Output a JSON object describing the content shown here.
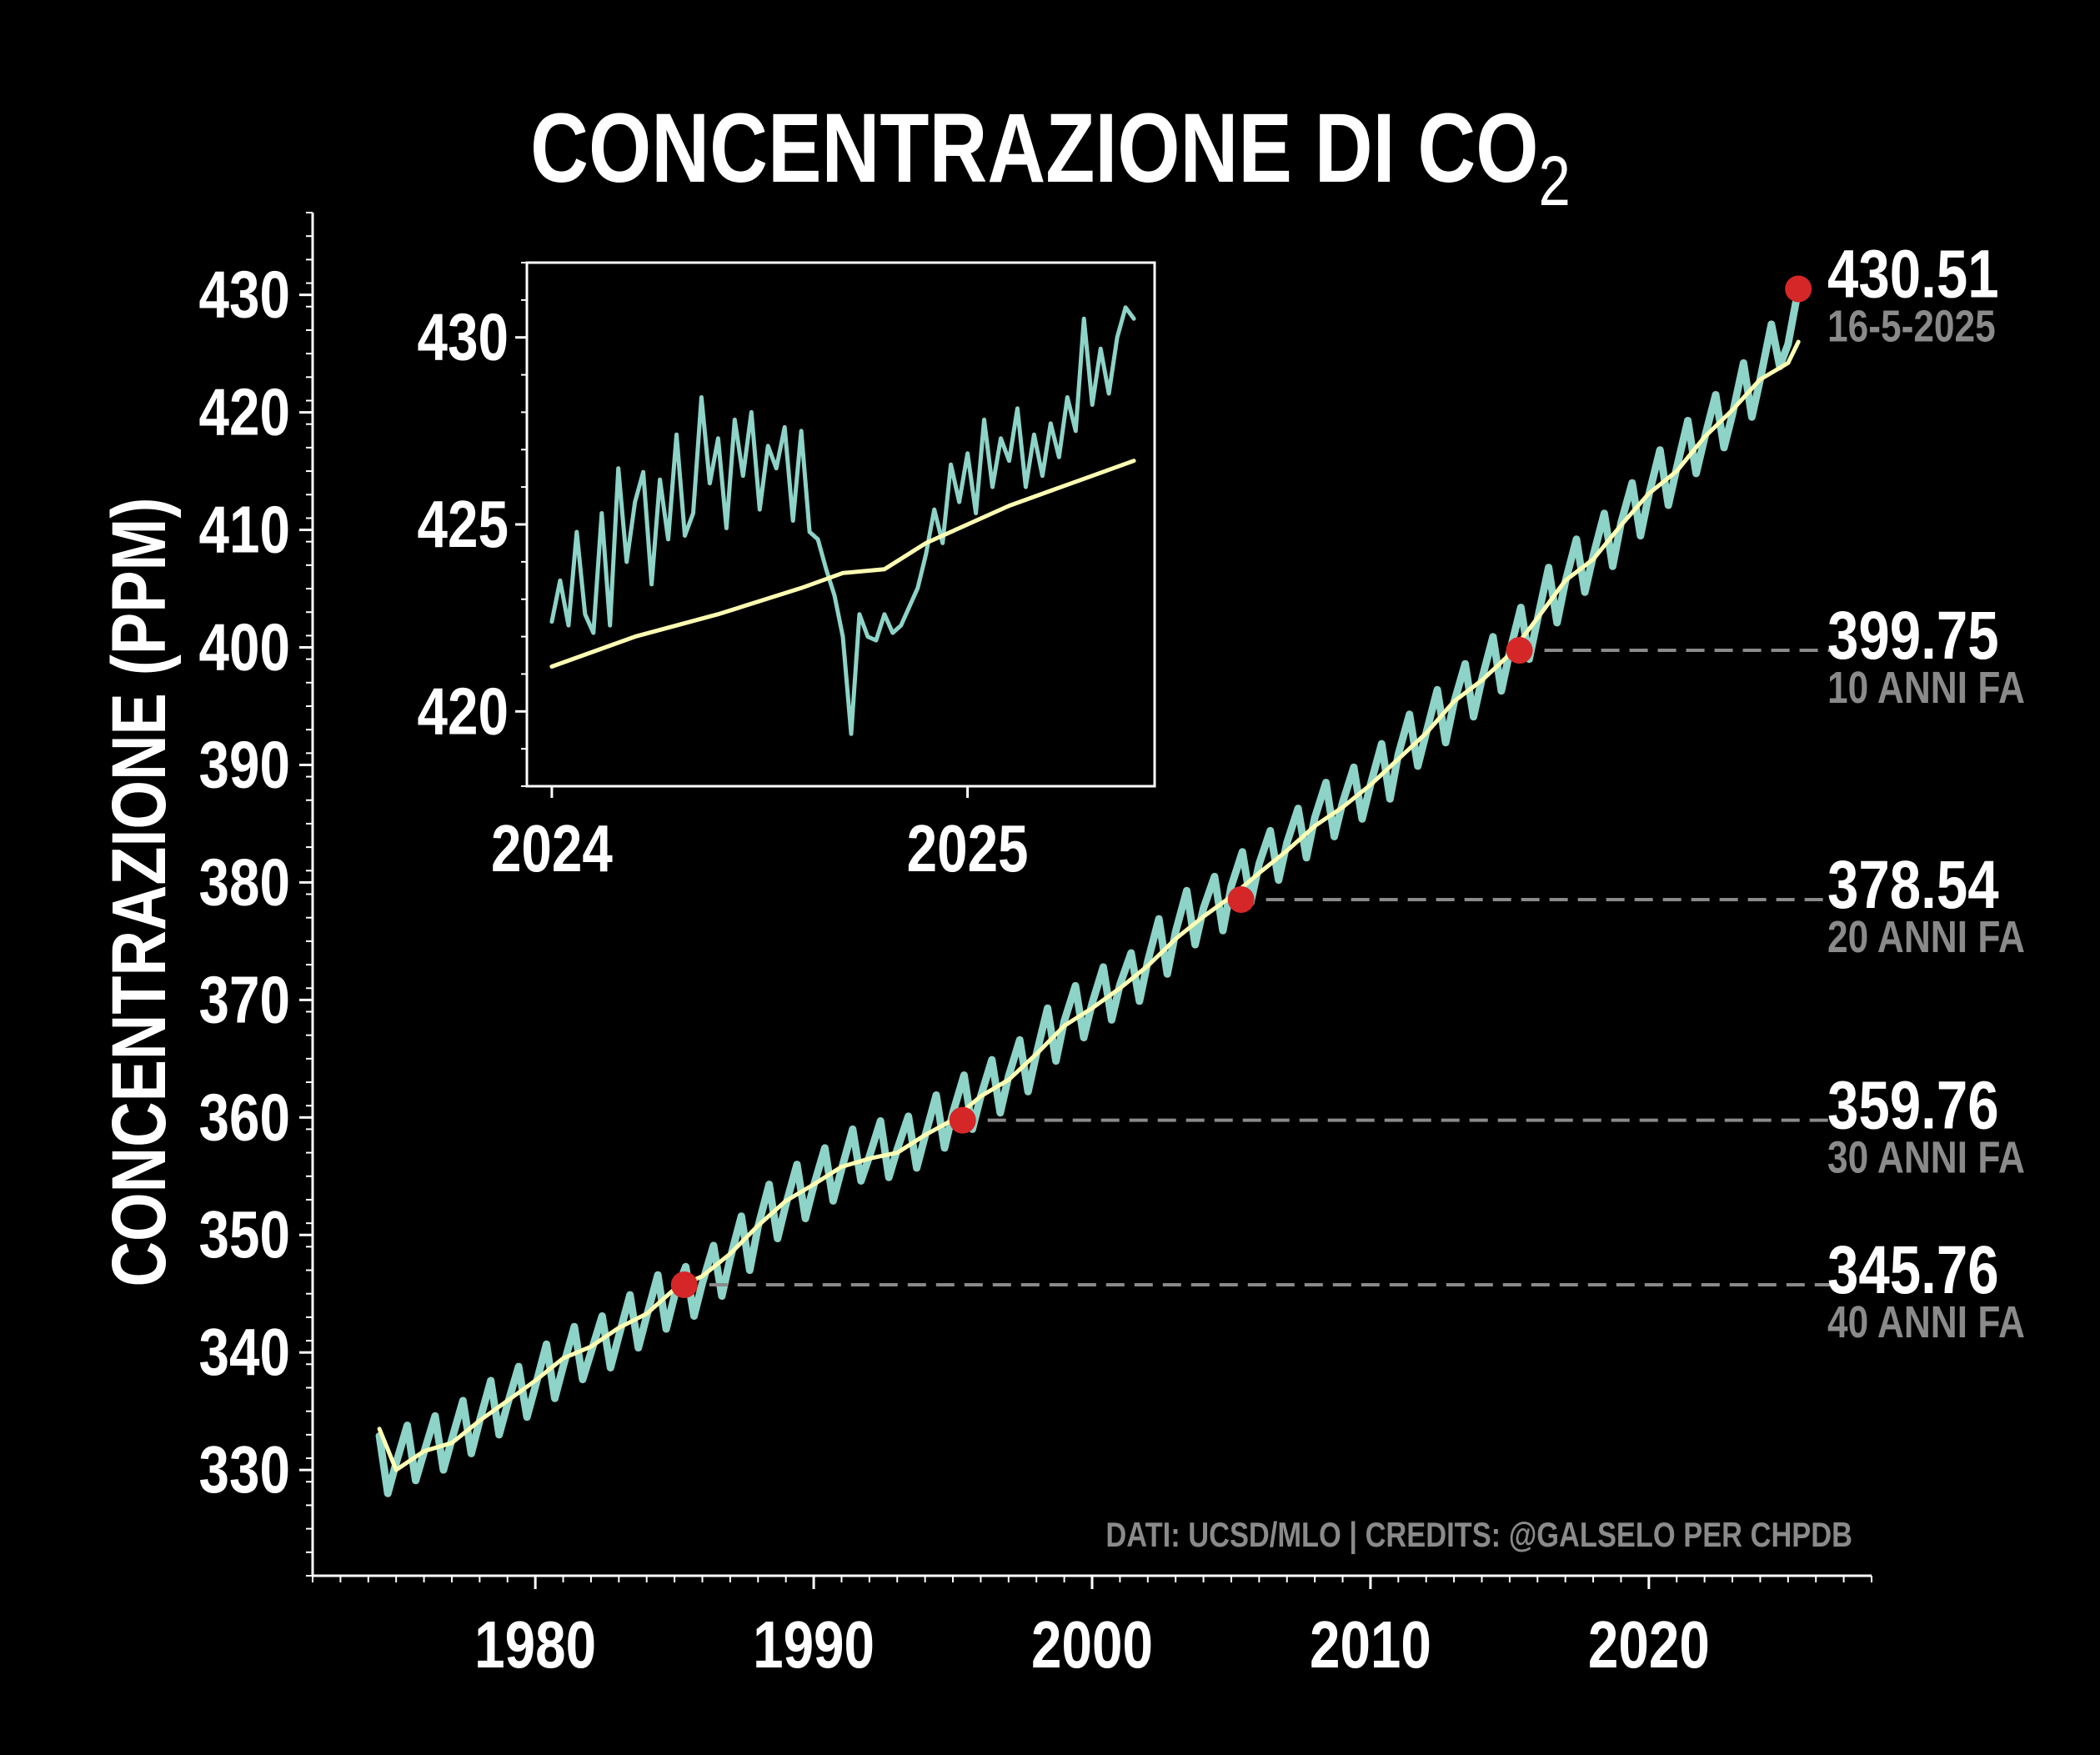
{
  "chart_data": {
    "type": "line",
    "title": "CONCENTRAZIONE DI CO",
    "title_subscript": "2",
    "ylabel": "CONCENTRAZIONE (PPM)",
    "xlabel": "",
    "xlim": [
      1972.0,
      2028.0
    ],
    "ylim": [
      321.0,
      437.0
    ],
    "x_ticks": [
      1980,
      1990,
      2000,
      2010,
      2020
    ],
    "y_ticks": [
      330,
      340,
      350,
      360,
      370,
      380,
      390,
      400,
      410,
      420,
      430
    ],
    "grid": false,
    "colors": {
      "background": "#000000",
      "daily": "#8dd3c7",
      "trend": "#ffffb3",
      "marker": "#d62728",
      "annotation_value": "#ffffff",
      "annotation_label": "#8a8a8a",
      "dashed_line": "#8a8a8a",
      "credits": "#8a8a8a",
      "axes": "#ffffff"
    },
    "series": [
      {
        "role": "daily",
        "x": [
          1974.4,
          1974.7,
          1975.0,
          1975.4,
          1975.7,
          1976.0,
          1976.4,
          1976.7,
          1977.0,
          1977.4,
          1977.7,
          1978.0,
          1978.4,
          1978.7,
          1979.0,
          1979.4,
          1979.7,
          1980.0,
          1980.4,
          1980.7,
          1981.0,
          1981.4,
          1981.7,
          1982.0,
          1982.4,
          1982.7,
          1983.0,
          1983.4,
          1983.7,
          1984.0,
          1984.4,
          1984.7,
          1985.0,
          1985.4,
          1985.7,
          1986.0,
          1986.4,
          1986.7,
          1987.0,
          1987.4,
          1987.7,
          1988.0,
          1988.4,
          1988.7,
          1989.0,
          1989.4,
          1989.7,
          1990.0,
          1990.4,
          1990.7,
          1991.0,
          1991.4,
          1991.7,
          1992.0,
          1992.4,
          1992.7,
          1993.0,
          1993.4,
          1993.7,
          1994.0,
          1994.4,
          1994.7,
          1995.0,
          1995.4,
          1995.7,
          1996.0,
          1996.4,
          1996.7,
          1997.0,
          1997.4,
          1997.7,
          1998.0,
          1998.4,
          1998.7,
          1999.0,
          1999.4,
          1999.7,
          2000.0,
          2000.4,
          2000.7,
          2001.0,
          2001.4,
          2001.7,
          2002.0,
          2002.4,
          2002.7,
          2003.0,
          2003.4,
          2003.7,
          2004.0,
          2004.4,
          2004.7,
          2005.0,
          2005.4,
          2005.7,
          2006.0,
          2006.4,
          2006.7,
          2007.0,
          2007.4,
          2007.7,
          2008.0,
          2008.4,
          2008.7,
          2009.0,
          2009.4,
          2009.7,
          2010.0,
          2010.4,
          2010.7,
          2011.0,
          2011.4,
          2011.7,
          2012.0,
          2012.4,
          2012.7,
          2013.0,
          2013.4,
          2013.7,
          2014.0,
          2014.4,
          2014.7,
          2015.0,
          2015.4,
          2015.7,
          2016.0,
          2016.4,
          2016.7,
          2017.0,
          2017.4,
          2017.7,
          2018.0,
          2018.4,
          2018.7,
          2019.0,
          2019.4,
          2019.7,
          2020.0,
          2020.4,
          2020.7,
          2021.0,
          2021.4,
          2021.7,
          2022.0,
          2022.4,
          2022.7,
          2023.0,
          2023.4,
          2023.7,
          2024.0,
          2024.4,
          2024.7,
          2025.0,
          2025.37
        ],
        "y": [
          332.9,
          328.0,
          330.6,
          333.8,
          329.1,
          331.5,
          334.6,
          330.0,
          332.6,
          335.9,
          331.4,
          334.2,
          337.6,
          333.0,
          335.6,
          338.8,
          334.5,
          337.1,
          340.7,
          336.1,
          338.8,
          342.2,
          337.7,
          340.0,
          343.1,
          338.7,
          341.4,
          344.9,
          340.4,
          343.1,
          346.6,
          342.0,
          344.8,
          347.3,
          343.1,
          345.9,
          349.1,
          344.8,
          348.0,
          351.6,
          347.0,
          350.7,
          354.3,
          349.7,
          352.6,
          356.0,
          351.4,
          354.2,
          357.4,
          352.9,
          355.6,
          359.0,
          354.6,
          356.7,
          359.7,
          354.9,
          357.3,
          360.1,
          355.7,
          358.4,
          361.9,
          357.4,
          360.4,
          363.6,
          359.0,
          361.8,
          364.9,
          360.4,
          363.5,
          366.6,
          362.2,
          365.4,
          369.3,
          364.8,
          368.2,
          371.2,
          366.8,
          369.7,
          372.8,
          368.3,
          371.3,
          374.0,
          369.9,
          373.3,
          376.9,
          372.2,
          375.8,
          379.3,
          374.7,
          377.8,
          380.5,
          375.9,
          379.7,
          382.6,
          378.3,
          381.6,
          384.4,
          380.2,
          383.4,
          386.3,
          382.1,
          385.5,
          388.5,
          383.9,
          386.8,
          389.8,
          385.4,
          388.3,
          391.8,
          387.1,
          390.9,
          394.3,
          389.9,
          392.7,
          396.4,
          391.9,
          395.3,
          398.6,
          394.1,
          397.3,
          400.9,
          396.3,
          399.6,
          403.4,
          399.0,
          402.4,
          406.8,
          402.1,
          405.6,
          409.2,
          404.7,
          407.8,
          411.4,
          406.9,
          410.6,
          414.0,
          409.5,
          413.0,
          416.8,
          412.1,
          415.3,
          419.3,
          414.8,
          417.8,
          421.5,
          417.0,
          419.8,
          424.2,
          419.6,
          422.8,
          427.5,
          423.9,
          425.8,
          430.51
        ]
      },
      {
        "role": "trend",
        "x": [
          1974.4,
          1975.0,
          1976.0,
          1977.0,
          1978.0,
          1979.0,
          1980.0,
          1981.0,
          1982.0,
          1983.0,
          1984.0,
          1985.0,
          1986.0,
          1987.0,
          1988.0,
          1989.0,
          1990.0,
          1991.0,
          1992.0,
          1993.0,
          1994.0,
          1995.0,
          1996.0,
          1997.0,
          1998.0,
          1999.0,
          2000.0,
          2001.0,
          2002.0,
          2003.0,
          2004.0,
          2005.0,
          2006.0,
          2007.0,
          2008.0,
          2009.0,
          2010.0,
          2011.0,
          2012.0,
          2013.0,
          2014.0,
          2015.0,
          2016.0,
          2017.0,
          2018.0,
          2019.0,
          2020.0,
          2021.0,
          2022.0,
          2023.0,
          2024.0,
          2025.0,
          2025.37
        ],
        "y": [
          333.5,
          330.0,
          331.6,
          332.3,
          334.2,
          335.9,
          337.6,
          339.5,
          340.5,
          342.1,
          343.3,
          345.4,
          346.5,
          348.4,
          350.8,
          352.9,
          354.3,
          355.8,
          356.5,
          357.0,
          358.5,
          359.8,
          361.8,
          363.2,
          365.4,
          367.8,
          369.3,
          371.0,
          372.9,
          375.2,
          377.1,
          378.8,
          380.8,
          382.7,
          384.8,
          386.4,
          388.3,
          390.5,
          392.7,
          395.4,
          397.2,
          399.4,
          402.5,
          405.7,
          407.5,
          410.4,
          413.1,
          415.0,
          417.9,
          420.2,
          422.8,
          424.2,
          426.0
        ]
      }
    ],
    "markers": [
      {
        "x": 1985.35,
        "y": 345.76
      },
      {
        "x": 1995.35,
        "y": 359.76
      },
      {
        "x": 2005.35,
        "y": 378.54
      },
      {
        "x": 2015.35,
        "y": 399.75
      },
      {
        "x": 2025.37,
        "y": 430.51
      }
    ],
    "annotations": [
      {
        "value": "430.51",
        "label": "16-5-2025",
        "y": 430.51,
        "x": 2025.37,
        "dashed": false
      },
      {
        "value": "399.75",
        "label": "10 ANNI FA",
        "y": 399.75,
        "x": 2015.35,
        "dashed": true
      },
      {
        "value": "378.54",
        "label": "20 ANNI FA",
        "y": 378.54,
        "x": 2005.35,
        "dashed": true
      },
      {
        "value": "359.76",
        "label": "30 ANNI FA",
        "y": 359.76,
        "x": 1995.35,
        "dashed": true
      },
      {
        "value": "345.76",
        "label": "40 ANNI FA",
        "y": 345.76,
        "x": 1985.35,
        "dashed": true
      }
    ],
    "credits": "DATI: UCSD/MLO | CREDITS: @GALSELO PER CHPDB",
    "inset": {
      "type": "line",
      "xlim": [
        2023.94,
        2025.45
      ],
      "ylim": [
        418.0,
        432.0
      ],
      "x_ticks": [
        2024,
        2025
      ],
      "x_tick_labels": [
        "2024",
        "2025"
      ],
      "y_ticks": [
        420,
        425,
        430
      ],
      "series": [
        {
          "role": "daily",
          "x": [
            2024.0,
            2024.02,
            2024.04,
            2024.06,
            2024.08,
            2024.1,
            2024.12,
            2024.14,
            2024.16,
            2024.18,
            2024.2,
            2024.22,
            2024.24,
            2024.26,
            2024.28,
            2024.3,
            2024.32,
            2024.34,
            2024.36,
            2024.38,
            2024.4,
            2024.42,
            2024.44,
            2024.46,
            2024.48,
            2024.5,
            2024.52,
            2024.54,
            2024.56,
            2024.58,
            2024.6,
            2024.62,
            2024.64,
            2024.66,
            2024.68,
            2024.7,
            2024.72,
            2024.74,
            2024.76,
            2024.78,
            2024.8,
            2024.82,
            2024.84,
            2024.86,
            2024.88,
            2024.9,
            2024.92,
            2024.94,
            2024.96,
            2024.98,
            2025.0,
            2025.02,
            2025.04,
            2025.06,
            2025.08,
            2025.1,
            2025.12,
            2025.14,
            2025.16,
            2025.18,
            2025.2,
            2025.22,
            2025.24,
            2025.26,
            2025.28,
            2025.3,
            2025.32,
            2025.34,
            2025.36,
            2025.38,
            2025.4
          ],
          "y": [
            422.4,
            423.5,
            422.3,
            424.8,
            422.6,
            422.1,
            425.3,
            422.3,
            426.5,
            424.0,
            425.6,
            426.4,
            423.4,
            426.2,
            424.6,
            427.4,
            424.7,
            425.3,
            428.4,
            426.1,
            427.3,
            424.9,
            427.8,
            426.3,
            428.0,
            425.4,
            427.1,
            426.5,
            427.6,
            425.1,
            427.5,
            424.8,
            424.6,
            423.8,
            423.1,
            422.0,
            419.4,
            422.6,
            422.0,
            421.9,
            422.6,
            422.1,
            422.3,
            422.8,
            423.3,
            424.2,
            425.4,
            424.5,
            426.6,
            425.6,
            426.9,
            425.3,
            427.8,
            426.0,
            427.3,
            426.7,
            428.1,
            426.0,
            427.4,
            426.3,
            427.7,
            426.8,
            428.4,
            427.5,
            430.5,
            428.2,
            429.7,
            428.5,
            430.0,
            430.8,
            430.5
          ]
        },
        {
          "role": "trend",
          "x": [
            2024.0,
            2024.2,
            2024.4,
            2024.6,
            2024.7,
            2024.8,
            2024.9,
            2025.0,
            2025.1,
            2025.2,
            2025.3,
            2025.4
          ],
          "y": [
            421.2,
            422.0,
            422.6,
            423.3,
            423.7,
            423.8,
            424.5,
            425.0,
            425.5,
            425.9,
            426.3,
            426.7
          ]
        }
      ]
    }
  }
}
